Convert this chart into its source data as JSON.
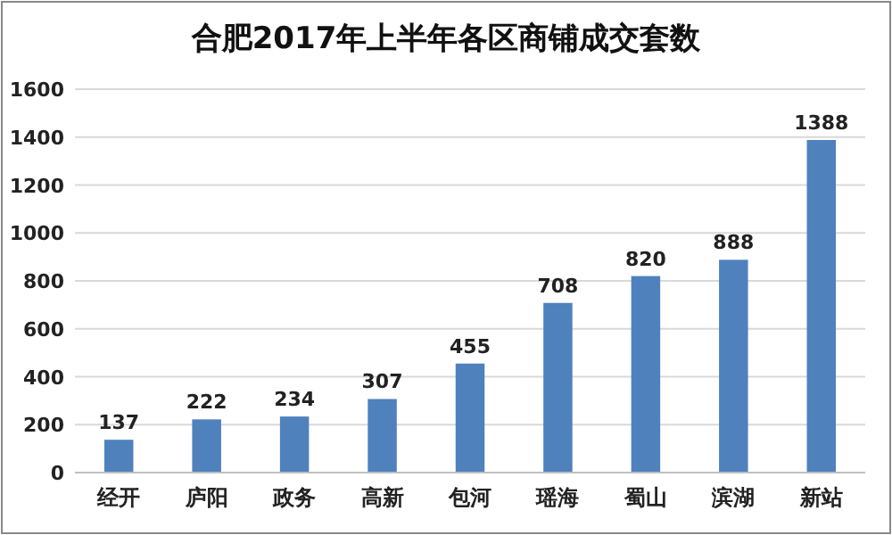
{
  "chart_data": {
    "type": "bar",
    "title": "合肥2017年上半年各区商铺成交套数",
    "categories": [
      "经开",
      "庐阳",
      "政务",
      "高新",
      "包河",
      "瑶海",
      "蜀山",
      "滨湖",
      "新站"
    ],
    "values": [
      137,
      222,
      234,
      307,
      455,
      708,
      820,
      888,
      1388
    ],
    "color": "#4f81bd",
    "ylim": [
      0,
      1600
    ],
    "yticks": [
      0,
      200,
      400,
      600,
      800,
      1000,
      1200,
      1400,
      1600
    ],
    "grid": "y",
    "data_labels": true
  }
}
